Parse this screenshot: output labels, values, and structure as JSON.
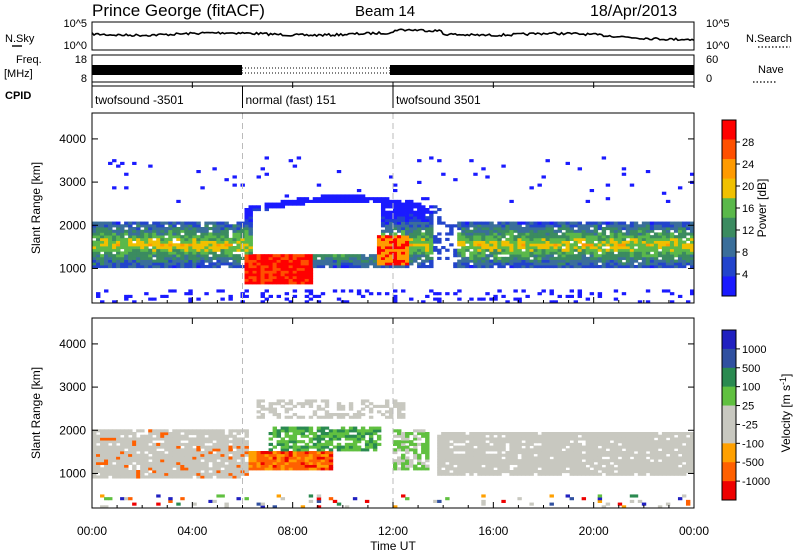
{
  "header": {
    "station": "Prince George (fitACF)",
    "beam": "Beam 14",
    "date": "18/Apr/2013"
  },
  "nsky_panel": {
    "left_label": "N.Sky",
    "left_ticks": [
      "10^5",
      "10^0"
    ],
    "right_ticks": [
      "10^5",
      "10^0"
    ],
    "right_label": "N.Search"
  },
  "freq_panel": {
    "left_label_1": "Freq.",
    "left_label_2": "[MHz]",
    "left_ticks": [
      "18",
      "8"
    ],
    "right_ticks": [
      "60",
      "0"
    ],
    "right_label": "Nave"
  },
  "cpid_panel": {
    "label": "CPID",
    "modes": [
      {
        "name": "twofsound -3501",
        "start_hour": 0,
        "end_hour": 6
      },
      {
        "name": "normal (fast) 151",
        "start_hour": 6,
        "end_hour": 12
      },
      {
        "name": "twofsound 3501",
        "start_hour": 12,
        "end_hour": 24
      }
    ]
  },
  "colors": {
    "power_scale": [
      "#1a1aff",
      "#2244cc",
      "#3a6e9a",
      "#3b8b60",
      "#5ab84a",
      "#f0c000",
      "#ff9a00",
      "#ff5000",
      "#ff0000"
    ],
    "velocity_scale": [
      "#ee0000",
      "#ff6000",
      "#ffa000",
      "#c8c8c0",
      "#c8c8c0",
      "#60c040",
      "#2a8a50",
      "#3050a0",
      "#2020c0"
    ]
  },
  "chart_data": [
    {
      "type": "heatmap",
      "name": "power",
      "ylabel": "Slant Range [km]",
      "yticks": [
        1000,
        2000,
        3000,
        4000
      ],
      "ylim": [
        200,
        4600
      ],
      "xlim": [
        0,
        24
      ],
      "colorbar": {
        "label": "Power [dB]",
        "ticks": [
          "28",
          "24",
          "20",
          "16",
          "12",
          "8",
          "4"
        ],
        "range": [
          0,
          32
        ]
      },
      "features": [
        {
          "band": "main",
          "x": [
            0,
            6
          ],
          "range_km": [
            1100,
            2000
          ],
          "level": "8-20 dB"
        },
        {
          "band": "strong",
          "x": [
            6.5,
            8.5
          ],
          "range_km": [
            700,
            1300
          ],
          "level": "28+ dB"
        },
        {
          "band": "strong",
          "x": [
            11.5,
            12.5
          ],
          "range_km": [
            1100,
            1800
          ],
          "level": "24-28 dB"
        },
        {
          "band": "main",
          "x": [
            14.5,
            24
          ],
          "range_km": [
            1000,
            2000
          ],
          "level": "8-20 dB"
        }
      ]
    },
    {
      "type": "heatmap",
      "name": "velocity",
      "ylabel": "Slant Range [km]",
      "yticks": [
        1000,
        2000,
        3000,
        4000
      ],
      "ylim": [
        200,
        4600
      ],
      "xlim": [
        0,
        24
      ],
      "colorbar": {
        "label": "Velocity [m s^-1]",
        "ticks": [
          "1000",
          "500",
          "100",
          "25",
          "-25",
          "-100",
          "-500",
          "-1000"
        ],
        "range": [
          -1200,
          1200
        ]
      },
      "features": [
        {
          "band": "ground",
          "x": [
            0,
            6
          ],
          "range_km": [
            900,
            1900
          ],
          "level": "-25 to 25"
        },
        {
          "band": "away",
          "x": [
            6.5,
            9.5
          ],
          "range_km": [
            1100,
            1500
          ],
          "level": "-100 to -500"
        },
        {
          "band": "ground",
          "x": [
            14,
            24
          ],
          "range_km": [
            1000,
            1900
          ],
          "level": "-25 to 25"
        }
      ]
    }
  ],
  "x_axis": {
    "ticks": [
      "00:00",
      "04:00",
      "08:00",
      "12:00",
      "16:00",
      "20:00",
      "00:00"
    ],
    "label": "Time UT"
  }
}
